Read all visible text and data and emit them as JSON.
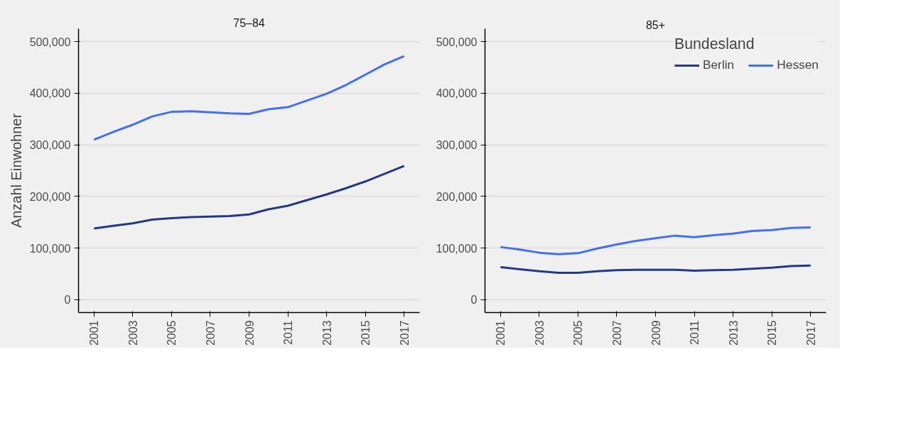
{
  "chart_data": [
    {
      "type": "line",
      "title": "75–84",
      "ylabel": "Anzahl Einwohner",
      "legend": false,
      "x": [
        2001,
        2002,
        2003,
        2004,
        2005,
        2006,
        2007,
        2008,
        2009,
        2010,
        2011,
        2012,
        2013,
        2014,
        2015,
        2016,
        2017
      ],
      "series": [
        {
          "color": "#223a85",
          "values": [
            138000,
            143000,
            148000,
            155000,
            158000,
            160000,
            161000,
            162000,
            165000,
            175000,
            182000,
            193000,
            204000,
            216000,
            229000,
            244000,
            259000
          ]
        },
        {
          "color": "#4470f0",
          "values": [
            310000,
            325000,
            339000,
            355000,
            364000,
            365000,
            363000,
            361000,
            360000,
            369000,
            373000,
            386000,
            399000,
            416000,
            436000,
            456000,
            472000
          ]
        }
      ],
      "xlim": [
        2000.2,
        2017.8
      ],
      "xticks": [
        2001,
        2003,
        2005,
        2007,
        2009,
        2011,
        2013,
        2015,
        2017
      ],
      "ylim": [
        -25000,
        525000
      ],
      "yticks": [
        {
          "value": 0,
          "label": "0"
        },
        {
          "value": 100000,
          "label": "100,000"
        },
        {
          "value": 200000,
          "label": "200,000"
        },
        {
          "value": 300000,
          "label": "300,000"
        },
        {
          "value": 400000,
          "label": "400,000"
        },
        {
          "value": 500000,
          "label": "500,000"
        }
      ],
      "grid": "y"
    },
    {
      "type": "line",
      "title": "85+",
      "legend_title": "Bundesland",
      "legend": "top right",
      "x": [
        2001,
        2002,
        2003,
        2004,
        2005,
        2006,
        2007,
        2008,
        2009,
        2010,
        2011,
        2012,
        2013,
        2014,
        2015,
        2016,
        2017
      ],
      "series": [
        {
          "name": "Berlin",
          "color": "#223a85",
          "values": [
            63000,
            59000,
            55000,
            52000,
            52000,
            55000,
            57000,
            58000,
            58000,
            58000,
            56000,
            57000,
            58000,
            60000,
            62000,
            65000,
            66000
          ]
        },
        {
          "name": "Hessen",
          "color": "#4470f0",
          "values": [
            102000,
            97000,
            91000,
            88000,
            90000,
            99000,
            107000,
            114000,
            119000,
            124000,
            121000,
            125000,
            128000,
            133000,
            135000,
            139000,
            140000
          ]
        }
      ],
      "xlim": [
        2000.2,
        2017.8
      ],
      "xticks": [
        2001,
        2003,
        2005,
        2007,
        2009,
        2011,
        2013,
        2015,
        2017
      ],
      "ylim": [
        -25000,
        525000
      ],
      "yticks": [
        {
          "value": 0,
          "label": "0"
        },
        {
          "value": 100000,
          "label": "100,000"
        },
        {
          "value": 200000,
          "label": "200,000"
        },
        {
          "value": 300000,
          "label": "300,000"
        },
        {
          "value": 400000,
          "label": "400,000"
        },
        {
          "value": 500000,
          "label": "500,000"
        }
      ],
      "grid": "y"
    }
  ]
}
